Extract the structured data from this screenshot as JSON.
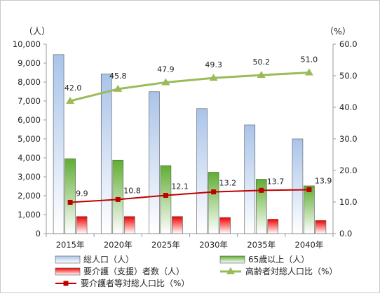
{
  "chart_data": {
    "type": "bar",
    "categories": [
      "2015年",
      "2020年",
      "2025年",
      "2030年",
      "2035年",
      "2040年"
    ],
    "left_axis": {
      "unit_label": "（人）",
      "min": 0,
      "max": 10000,
      "step": 1000
    },
    "right_axis": {
      "unit_label": "（%）",
      "min": 0,
      "max": 60,
      "step": 10
    },
    "grid": false,
    "legend_position": "bottom",
    "series": [
      {
        "name": "総人口（人）",
        "kind": "bar",
        "axis": "left",
        "color_top": "#a9c4ea",
        "color_bottom": "#ffffff",
        "values": [
          9450,
          8430,
          7490,
          6600,
          5740,
          5000
        ]
      },
      {
        "name": "65歳以上（人）",
        "kind": "bar",
        "axis": "left",
        "color_top": "#5fae32",
        "color_bottom": "#ffffff",
        "values": [
          3950,
          3880,
          3590,
          3240,
          2870,
          2520
        ]
      },
      {
        "name": "要介護（支援）者数（人）",
        "kind": "bar",
        "axis": "left",
        "color_top": "#f20000",
        "color_bottom": "#ffffff",
        "values": [
          900,
          900,
          900,
          850,
          760,
          690
        ]
      },
      {
        "name": "高齢者対総人口比（%）",
        "kind": "line",
        "axis": "right",
        "color": "#9bbb59",
        "marker": "triangle",
        "values": [
          42.0,
          45.8,
          47.9,
          49.3,
          50.2,
          51.0
        ],
        "labels": [
          "42.0",
          "45.8",
          "47.9",
          "49.3",
          "50.2",
          "51.0"
        ]
      },
      {
        "name": "要介護者等対総人口比（%）",
        "kind": "line",
        "axis": "right",
        "color": "#c00000",
        "marker": "square",
        "values": [
          9.9,
          10.8,
          12.1,
          13.2,
          13.7,
          13.9
        ],
        "labels": [
          "9.9",
          "10.8",
          "12.1",
          "13.2",
          "13.7",
          "13.9"
        ]
      }
    ]
  }
}
